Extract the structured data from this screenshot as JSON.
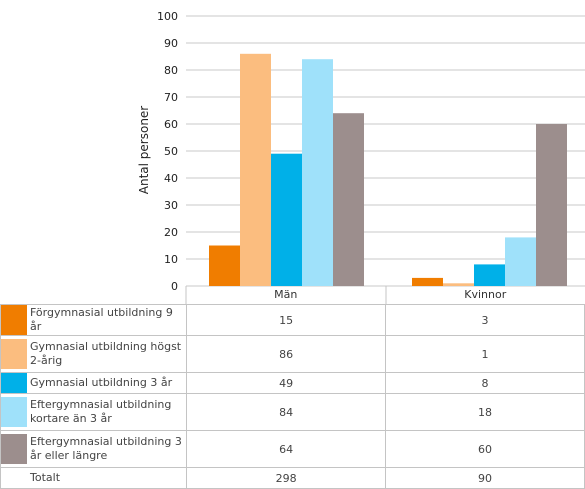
{
  "chart_data": {
    "type": "bar",
    "title": "",
    "xlabel": "",
    "ylabel": "Antal personer",
    "ylim": [
      0,
      100
    ],
    "yticks": [
      0,
      10,
      20,
      30,
      40,
      50,
      60,
      70,
      80,
      90,
      100
    ],
    "grid": true,
    "categories": [
      "Män",
      "Kvinnor"
    ],
    "series": [
      {
        "name": "Förgymnasial utbildning 9 år",
        "color": "#f07d00",
        "values": [
          15,
          3
        ]
      },
      {
        "name": "Gymnasial utbildning högst 2-årig",
        "color": "#fbbd7f",
        "values": [
          86,
          1
        ]
      },
      {
        "name": "Gymnasial utbildning 3 år",
        "color": "#00b0e8",
        "values": [
          49,
          8
        ]
      },
      {
        "name": "Eftergymnasial utbildning kortare än 3 år",
        "color": "#9fe1fa",
        "values": [
          84,
          18
        ]
      },
      {
        "name": "Eftergymnasial utbildning 3 år eller längre",
        "color": "#9c8e8d",
        "values": [
          64,
          60
        ]
      }
    ],
    "totals": {
      "label": "Totalt",
      "values": [
        298,
        90
      ]
    }
  }
}
